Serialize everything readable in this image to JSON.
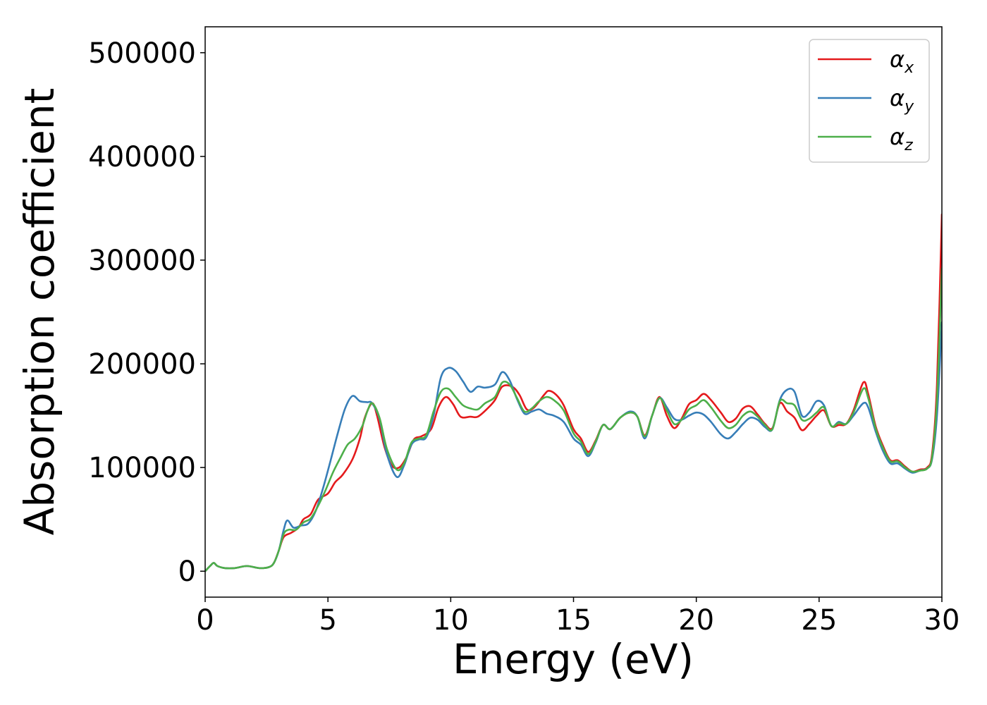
{
  "chart_data": {
    "type": "line",
    "title": "",
    "xlabel": "Energy (eV)",
    "ylabel": "Absorption coefficient",
    "xlim": [
      0,
      30
    ],
    "ylim": [
      -25000,
      525000
    ],
    "xticks": [
      0,
      5,
      10,
      15,
      20,
      25,
      30
    ],
    "xtick_labels": [
      "0",
      "5",
      "10",
      "15",
      "20",
      "25",
      "30"
    ],
    "yticks": [
      0,
      100000,
      200000,
      300000,
      400000,
      500000
    ],
    "ytick_labels": [
      "0",
      "100000",
      "200000",
      "300000",
      "400000",
      "500000"
    ],
    "grid": false,
    "legend_position": "top-right",
    "series": [
      {
        "name": "α",
        "subscript": "x",
        "color": "#e41a1c",
        "points": [
          [
            0,
            0
          ],
          [
            0.2,
            5000
          ],
          [
            0.35,
            8000
          ],
          [
            0.5,
            5000
          ],
          [
            0.8,
            3000
          ],
          [
            1.2,
            3000
          ],
          [
            1.7,
            5000
          ],
          [
            2.2,
            3000
          ],
          [
            2.6,
            4000
          ],
          [
            2.8,
            8000
          ],
          [
            3.0,
            20000
          ],
          [
            3.2,
            33000
          ],
          [
            3.5,
            37000
          ],
          [
            3.8,
            42000
          ],
          [
            4.0,
            50000
          ],
          [
            4.3,
            55000
          ],
          [
            4.6,
            69000
          ],
          [
            5.0,
            75000
          ],
          [
            5.3,
            86000
          ],
          [
            5.6,
            93000
          ],
          [
            6.0,
            108000
          ],
          [
            6.3,
            128000
          ],
          [
            6.5,
            148000
          ],
          [
            6.8,
            162000
          ],
          [
            7.0,
            150000
          ],
          [
            7.3,
            120000
          ],
          [
            7.6,
            102000
          ],
          [
            7.9,
            100000
          ],
          [
            8.2,
            110000
          ],
          [
            8.5,
            127000
          ],
          [
            8.8,
            130000
          ],
          [
            9.2,
            137000
          ],
          [
            9.5,
            158000
          ],
          [
            9.8,
            168000
          ],
          [
            10.1,
            161000
          ],
          [
            10.4,
            149000
          ],
          [
            10.8,
            149000
          ],
          [
            11.1,
            149000
          ],
          [
            11.5,
            157000
          ],
          [
            11.8,
            165000
          ],
          [
            12.1,
            178000
          ],
          [
            12.5,
            178000
          ],
          [
            12.8,
            170000
          ],
          [
            13.1,
            156000
          ],
          [
            13.4,
            158000
          ],
          [
            13.8,
            170000
          ],
          [
            14.0,
            174000
          ],
          [
            14.3,
            170000
          ],
          [
            14.6,
            160000
          ],
          [
            15.0,
            137000
          ],
          [
            15.3,
            128000
          ],
          [
            15.6,
            115000
          ],
          [
            15.9,
            126000
          ],
          [
            16.2,
            141000
          ],
          [
            16.5,
            137000
          ],
          [
            16.9,
            148000
          ],
          [
            17.3,
            153000
          ],
          [
            17.6,
            149000
          ],
          [
            17.9,
            131000
          ],
          [
            18.2,
            150000
          ],
          [
            18.5,
            168000
          ],
          [
            18.8,
            150000
          ],
          [
            19.1,
            138000
          ],
          [
            19.4,
            147000
          ],
          [
            19.7,
            161000
          ],
          [
            20.0,
            165000
          ],
          [
            20.3,
            171000
          ],
          [
            20.6,
            165000
          ],
          [
            21.0,
            153000
          ],
          [
            21.3,
            144000
          ],
          [
            21.6,
            147000
          ],
          [
            21.9,
            157000
          ],
          [
            22.2,
            159000
          ],
          [
            22.5,
            151000
          ],
          [
            22.8,
            142000
          ],
          [
            23.1,
            138000
          ],
          [
            23.4,
            162000
          ],
          [
            23.7,
            154000
          ],
          [
            24.0,
            148000
          ],
          [
            24.3,
            136000
          ],
          [
            24.6,
            142000
          ],
          [
            24.9,
            150000
          ],
          [
            25.2,
            155000
          ],
          [
            25.5,
            140000
          ],
          [
            25.8,
            141000
          ],
          [
            26.1,
            142000
          ],
          [
            26.4,
            155000
          ],
          [
            26.8,
            182000
          ],
          [
            27.0,
            171000
          ],
          [
            27.3,
            140000
          ],
          [
            27.6,
            121000
          ],
          [
            27.9,
            107000
          ],
          [
            28.2,
            107000
          ],
          [
            28.5,
            101000
          ],
          [
            28.8,
            96000
          ],
          [
            29.1,
            98000
          ],
          [
            29.4,
            100000
          ],
          [
            29.6,
            113000
          ],
          [
            29.8,
            180000
          ],
          [
            30.0,
            344000
          ]
        ]
      },
      {
        "name": "α",
        "subscript": "y",
        "color": "#377eb8",
        "points": [
          [
            0,
            0
          ],
          [
            0.2,
            5000
          ],
          [
            0.35,
            8000
          ],
          [
            0.5,
            5000
          ],
          [
            0.8,
            3000
          ],
          [
            1.2,
            3000
          ],
          [
            1.7,
            5000
          ],
          [
            2.2,
            3000
          ],
          [
            2.6,
            4000
          ],
          [
            2.8,
            8000
          ],
          [
            3.0,
            20000
          ],
          [
            3.2,
            40000
          ],
          [
            3.35,
            49000
          ],
          [
            3.6,
            42000
          ],
          [
            3.9,
            44000
          ],
          [
            4.2,
            46000
          ],
          [
            4.5,
            58000
          ],
          [
            4.8,
            80000
          ],
          [
            5.1,
            106000
          ],
          [
            5.4,
            133000
          ],
          [
            5.7,
            157000
          ],
          [
            6.0,
            169000
          ],
          [
            6.3,
            164000
          ],
          [
            6.6,
            163000
          ],
          [
            6.8,
            162000
          ],
          [
            7.1,
            147000
          ],
          [
            7.4,
            113000
          ],
          [
            7.8,
            91000
          ],
          [
            8.1,
            102000
          ],
          [
            8.4,
            122000
          ],
          [
            8.7,
            127000
          ],
          [
            9.0,
            129000
          ],
          [
            9.3,
            150000
          ],
          [
            9.6,
            187000
          ],
          [
            9.9,
            196000
          ],
          [
            10.2,
            193000
          ],
          [
            10.5,
            183000
          ],
          [
            10.8,
            173000
          ],
          [
            11.1,
            178000
          ],
          [
            11.4,
            177000
          ],
          [
            11.8,
            180000
          ],
          [
            12.1,
            192000
          ],
          [
            12.4,
            184000
          ],
          [
            12.7,
            166000
          ],
          [
            13.0,
            152000
          ],
          [
            13.3,
            154000
          ],
          [
            13.6,
            156000
          ],
          [
            13.9,
            152000
          ],
          [
            14.2,
            150000
          ],
          [
            14.6,
            144000
          ],
          [
            15.0,
            128000
          ],
          [
            15.3,
            122000
          ],
          [
            15.6,
            111000
          ],
          [
            15.9,
            124000
          ],
          [
            16.2,
            141000
          ],
          [
            16.5,
            137000
          ],
          [
            16.9,
            148000
          ],
          [
            17.3,
            154000
          ],
          [
            17.6,
            149000
          ],
          [
            17.9,
            128000
          ],
          [
            18.2,
            150000
          ],
          [
            18.5,
            167000
          ],
          [
            18.8,
            158000
          ],
          [
            19.1,
            147000
          ],
          [
            19.4,
            146000
          ],
          [
            19.7,
            150000
          ],
          [
            20.0,
            153000
          ],
          [
            20.3,
            151000
          ],
          [
            20.6,
            144000
          ],
          [
            21.0,
            132000
          ],
          [
            21.3,
            128000
          ],
          [
            21.6,
            134000
          ],
          [
            21.9,
            142000
          ],
          [
            22.2,
            148000
          ],
          [
            22.5,
            146000
          ],
          [
            22.8,
            139000
          ],
          [
            23.1,
            137000
          ],
          [
            23.4,
            165000
          ],
          [
            23.7,
            175000
          ],
          [
            24.0,
            173000
          ],
          [
            24.3,
            150000
          ],
          [
            24.6,
            153000
          ],
          [
            24.9,
            164000
          ],
          [
            25.2,
            160000
          ],
          [
            25.5,
            140000
          ],
          [
            25.8,
            144000
          ],
          [
            26.1,
            142000
          ],
          [
            26.4,
            150000
          ],
          [
            26.8,
            162000
          ],
          [
            27.0,
            158000
          ],
          [
            27.3,
            135000
          ],
          [
            27.6,
            116000
          ],
          [
            27.9,
            104000
          ],
          [
            28.2,
            104000
          ],
          [
            28.5,
            99000
          ],
          [
            28.8,
            95000
          ],
          [
            29.1,
            97000
          ],
          [
            29.4,
            99000
          ],
          [
            29.6,
            108000
          ],
          [
            29.8,
            150000
          ],
          [
            30.0,
            240000
          ]
        ]
      },
      {
        "name": "α",
        "subscript": "z",
        "color": "#4daf4a",
        "points": [
          [
            0,
            0
          ],
          [
            0.2,
            5000
          ],
          [
            0.35,
            8000
          ],
          [
            0.5,
            5000
          ],
          [
            0.8,
            3000
          ],
          [
            1.2,
            3000
          ],
          [
            1.7,
            5000
          ],
          [
            2.2,
            3000
          ],
          [
            2.6,
            4000
          ],
          [
            2.8,
            8000
          ],
          [
            3.0,
            20000
          ],
          [
            3.2,
            36000
          ],
          [
            3.4,
            40000
          ],
          [
            3.7,
            40000
          ],
          [
            4.0,
            47000
          ],
          [
            4.3,
            51000
          ],
          [
            4.6,
            63000
          ],
          [
            4.9,
            78000
          ],
          [
            5.2,
            95000
          ],
          [
            5.5,
            109000
          ],
          [
            5.8,
            122000
          ],
          [
            6.1,
            128000
          ],
          [
            6.4,
            140000
          ],
          [
            6.6,
            154000
          ],
          [
            6.8,
            162000
          ],
          [
            7.1,
            148000
          ],
          [
            7.4,
            118000
          ],
          [
            7.8,
            98000
          ],
          [
            8.1,
            104000
          ],
          [
            8.4,
            124000
          ],
          [
            8.7,
            128000
          ],
          [
            9.0,
            131000
          ],
          [
            9.3,
            154000
          ],
          [
            9.6,
            173000
          ],
          [
            9.9,
            176000
          ],
          [
            10.2,
            168000
          ],
          [
            10.5,
            160000
          ],
          [
            10.8,
            157000
          ],
          [
            11.1,
            156000
          ],
          [
            11.4,
            162000
          ],
          [
            11.8,
            168000
          ],
          [
            12.1,
            182000
          ],
          [
            12.4,
            180000
          ],
          [
            12.7,
            167000
          ],
          [
            13.0,
            154000
          ],
          [
            13.3,
            157000
          ],
          [
            13.6,
            164000
          ],
          [
            13.9,
            168000
          ],
          [
            14.2,
            165000
          ],
          [
            14.6,
            155000
          ],
          [
            15.0,
            133000
          ],
          [
            15.3,
            125000
          ],
          [
            15.6,
            113000
          ],
          [
            15.9,
            125000
          ],
          [
            16.2,
            141000
          ],
          [
            16.5,
            137000
          ],
          [
            16.9,
            148000
          ],
          [
            17.3,
            153000
          ],
          [
            17.6,
            149000
          ],
          [
            17.9,
            130000
          ],
          [
            18.2,
            150000
          ],
          [
            18.5,
            167000
          ],
          [
            18.8,
            155000
          ],
          [
            19.1,
            142000
          ],
          [
            19.4,
            146000
          ],
          [
            19.7,
            156000
          ],
          [
            20.0,
            160000
          ],
          [
            20.3,
            165000
          ],
          [
            20.6,
            158000
          ],
          [
            21.0,
            145000
          ],
          [
            21.3,
            138000
          ],
          [
            21.6,
            141000
          ],
          [
            21.9,
            150000
          ],
          [
            22.2,
            154000
          ],
          [
            22.5,
            149000
          ],
          [
            22.8,
            141000
          ],
          [
            23.1,
            137000
          ],
          [
            23.4,
            164000
          ],
          [
            23.7,
            162000
          ],
          [
            24.0,
            160000
          ],
          [
            24.3,
            146000
          ],
          [
            24.6,
            147000
          ],
          [
            24.9,
            153000
          ],
          [
            25.2,
            158000
          ],
          [
            25.5,
            140000
          ],
          [
            25.8,
            143000
          ],
          [
            26.1,
            142000
          ],
          [
            26.4,
            153000
          ],
          [
            26.8,
            176000
          ],
          [
            27.0,
            167000
          ],
          [
            27.3,
            138000
          ],
          [
            27.6,
            119000
          ],
          [
            27.9,
            106000
          ],
          [
            28.2,
            106000
          ],
          [
            28.5,
            100000
          ],
          [
            28.8,
            96000
          ],
          [
            29.1,
            97000
          ],
          [
            29.4,
            99000
          ],
          [
            29.6,
            110000
          ],
          [
            29.8,
            165000
          ],
          [
            30.0,
            292000
          ]
        ]
      }
    ]
  }
}
